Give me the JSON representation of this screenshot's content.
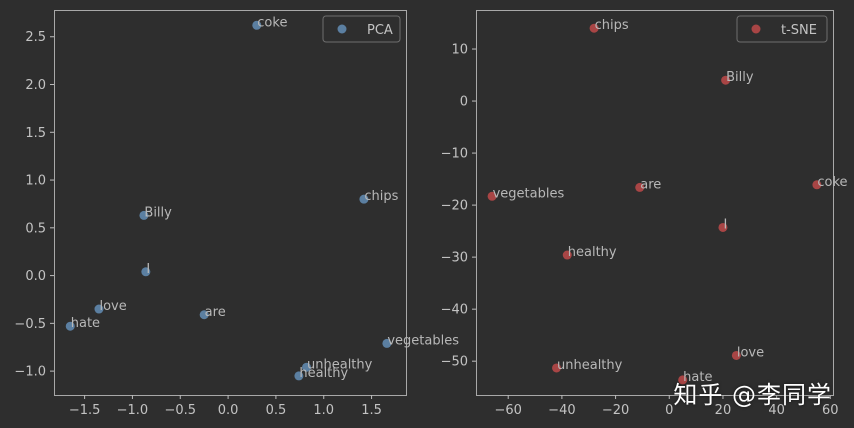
{
  "chart_data": [
    {
      "type": "scatter",
      "legend": "PCA",
      "legend_position": "top-right",
      "color": "#5b7fa1",
      "xlim": [
        -1.82,
        1.86
      ],
      "ylim": [
        -1.25,
        2.78
      ],
      "xticks": [
        -1.5,
        -1.0,
        -0.5,
        0.0,
        0.5,
        1.0,
        1.5
      ],
      "xtick_labels": [
        "−1.5",
        "−1.0",
        "−0.5",
        "0.0",
        "0.5",
        "1.0",
        "1.5"
      ],
      "yticks": [
        -1.0,
        -0.5,
        0.0,
        0.5,
        1.0,
        1.5,
        2.0,
        2.5
      ],
      "ytick_labels": [
        "−1.0",
        "−0.5",
        "0.0",
        "0.5",
        "1.0",
        "1.5",
        "2.0",
        "2.5"
      ],
      "points": [
        {
          "label": "coke",
          "x": 0.3,
          "y": 2.62
        },
        {
          "label": "chips",
          "x": 1.42,
          "y": 0.8
        },
        {
          "label": "Billy",
          "x": -0.88,
          "y": 0.63
        },
        {
          "label": "I",
          "x": -0.86,
          "y": 0.04
        },
        {
          "label": "love",
          "x": -1.35,
          "y": -0.35
        },
        {
          "label": "hate",
          "x": -1.65,
          "y": -0.53
        },
        {
          "label": "are",
          "x": -0.25,
          "y": -0.41
        },
        {
          "label": "vegetables",
          "x": 1.66,
          "y": -0.71
        },
        {
          "label": "unhealthy",
          "x": 0.82,
          "y": -0.96
        },
        {
          "label": "healthy",
          "x": 0.74,
          "y": -1.05
        }
      ]
    },
    {
      "type": "scatter",
      "legend": "t-SNE",
      "legend_position": "top-right",
      "color": "#a84545",
      "xlim": [
        -72,
        61
      ],
      "ylim": [
        -56.5,
        17.5
      ],
      "xticks": [
        -60,
        -40,
        -20,
        0,
        20,
        40,
        60
      ],
      "xtick_labels": [
        "−60",
        "−40",
        "−20",
        "0",
        "20",
        "40",
        "60"
      ],
      "yticks": [
        -50,
        -40,
        -30,
        -20,
        -10,
        0,
        10
      ],
      "ytick_labels": [
        "−50",
        "−40",
        "−30",
        "−20",
        "−10",
        "0",
        "10"
      ],
      "points": [
        {
          "label": "chips",
          "x": -28,
          "y": 14.0
        },
        {
          "label": "Billy",
          "x": 21,
          "y": 4.0
        },
        {
          "label": "are",
          "x": -11,
          "y": -16.6
        },
        {
          "label": "coke",
          "x": 55,
          "y": -16.1
        },
        {
          "label": "vegetables",
          "x": -66,
          "y": -18.3
        },
        {
          "label": "I",
          "x": 20,
          "y": -24.3
        },
        {
          "label": "healthy",
          "x": -38,
          "y": -29.6
        },
        {
          "label": "love",
          "x": 25,
          "y": -48.9
        },
        {
          "label": "unhealthy",
          "x": -42,
          "y": -51.3
        },
        {
          "label": "hate",
          "x": 5,
          "y": -53.6
        }
      ]
    }
  ],
  "watermark": "知乎 @李同学"
}
